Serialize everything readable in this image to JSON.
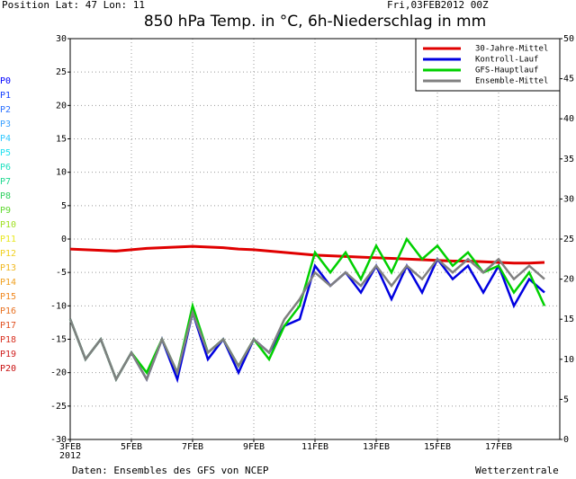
{
  "chart_data": {
    "type": "line",
    "title": "850 hPa Temp. in °C, 6h-Niederschlag in mm",
    "position": "Position  Lat: 47  Lon: 11",
    "run": "Fri,03FEB2012 00Z",
    "source": "Daten: Ensembles des GFS von NCEP",
    "brand": "Wetterzentrale",
    "year": "2012",
    "members": [
      {
        "name": "P0",
        "color": "#0000ff"
      },
      {
        "name": "P1",
        "color": "#1540ff"
      },
      {
        "name": "P2",
        "color": "#2a70ff"
      },
      {
        "name": "P3",
        "color": "#3aa0ff"
      },
      {
        "name": "P4",
        "color": "#30c8ff"
      },
      {
        "name": "P5",
        "color": "#20e0f0"
      },
      {
        "name": "P6",
        "color": "#20e0c0"
      },
      {
        "name": "P7",
        "color": "#20d890"
      },
      {
        "name": "P8",
        "color": "#30d060"
      },
      {
        "name": "P9",
        "color": "#60d830"
      },
      {
        "name": "P10",
        "color": "#a0e020"
      },
      {
        "name": "P11",
        "color": "#e8e820"
      },
      {
        "name": "P12",
        "color": "#f0d020"
      },
      {
        "name": "P13",
        "color": "#f0b820"
      },
      {
        "name": "P14",
        "color": "#f0a020"
      },
      {
        "name": "P15",
        "color": "#f08820"
      },
      {
        "name": "P16",
        "color": "#e87020"
      },
      {
        "name": "P17",
        "color": "#e05020"
      },
      {
        "name": "P18",
        "color": "#d83020"
      },
      {
        "name": "P19",
        "color": "#d02020"
      },
      {
        "name": "P20",
        "color": "#c81010"
      }
    ],
    "x": [
      0,
      0.5,
      1,
      1.5,
      2,
      2.5,
      3,
      3.5,
      4,
      4.5,
      5,
      5.5,
      6,
      6.5,
      7,
      7.5,
      8,
      8.5,
      9,
      9.5,
      10,
      10.5,
      11,
      11.5,
      12,
      12.5,
      13,
      13.5,
      14,
      14.5,
      15,
      15.5
    ],
    "xlim": [
      0,
      16
    ],
    "xticks": [
      {
        "value": 0,
        "label": "3FEB"
      },
      {
        "value": 2,
        "label": "5FEB"
      },
      {
        "value": 4,
        "label": "7FEB"
      },
      {
        "value": 6,
        "label": "9FEB"
      },
      {
        "value": 8,
        "label": "11FEB"
      },
      {
        "value": 10,
        "label": "13FEB"
      },
      {
        "value": 12,
        "label": "15FEB"
      },
      {
        "value": 14,
        "label": "17FEB"
      }
    ],
    "ylim": [
      -30,
      30
    ],
    "yticks": [
      30,
      25,
      20,
      15,
      10,
      5,
      0,
      -5,
      -10,
      -15,
      -20,
      -25,
      -30
    ],
    "y2lim": [
      0,
      50
    ],
    "y2ticks": [
      0,
      5,
      10,
      15,
      20,
      25,
      30,
      35,
      40,
      45,
      50
    ],
    "grid": true,
    "legend": "top-right",
    "series": [
      {
        "name": "30-Jahre-Mittel",
        "color": "#e00000",
        "values": [
          -1.5,
          -1.6,
          -1.7,
          -1.8,
          -1.6,
          -1.4,
          -1.3,
          -1.2,
          -1.1,
          -1.2,
          -1.3,
          -1.5,
          -1.6,
          -1.8,
          -2.0,
          -2.2,
          -2.4,
          -2.5,
          -2.6,
          -2.7,
          -2.8,
          -2.9,
          -3.0,
          -3.1,
          -3.2,
          -3.3,
          -3.3,
          -3.4,
          -3.5,
          -3.6,
          -3.6,
          -3.5
        ]
      },
      {
        "name": "Kontroll-Lauf",
        "color": "#0000e0",
        "values": [
          -12,
          -18,
          -15,
          -21,
          -17,
          -21,
          -15,
          -21,
          -11,
          -18,
          -15,
          -20,
          -15,
          -17,
          -13,
          -12,
          -4,
          -7,
          -5,
          -8,
          -4,
          -9,
          -4,
          -8,
          -3,
          -6,
          -4,
          -8,
          -4,
          -10,
          -6,
          -8
        ]
      },
      {
        "name": "GFS-Hauptlauf",
        "color": "#00d000",
        "values": [
          -12,
          -18,
          -15,
          -21,
          -17,
          -20,
          -15,
          -20,
          -10,
          -17,
          -15,
          -19,
          -15,
          -18,
          -13,
          -10,
          -2,
          -5,
          -2,
          -6,
          -1,
          -5,
          0,
          -3,
          -1,
          -4,
          -2,
          -5,
          -4,
          -8,
          -5,
          -10
        ]
      },
      {
        "name": "Ensemble-Mittel",
        "color": "#808080",
        "values": [
          -12,
          -18,
          -15,
          -21,
          -17,
          -21,
          -15,
          -20,
          -11,
          -17,
          -15,
          -19,
          -15,
          -17,
          -12,
          -9,
          -5,
          -7,
          -5,
          -7,
          -4,
          -7,
          -4,
          -6,
          -3,
          -5,
          -3,
          -5,
          -3,
          -6,
          -4,
          -6
        ]
      }
    ]
  }
}
